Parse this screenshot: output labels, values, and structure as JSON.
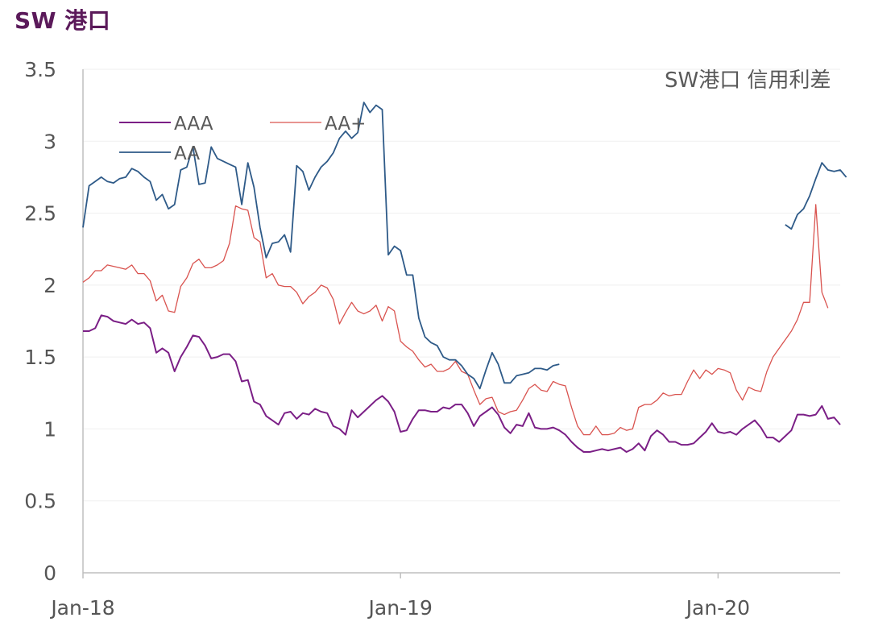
{
  "page_title": "SW 港口",
  "chart_data": {
    "type": "line",
    "title": "SW港口 信用利差",
    "xlabel": "",
    "ylabel": "",
    "ylim": [
      0,
      3.5
    ],
    "yticks": [
      "0",
      "0.5",
      "1",
      "1.5",
      "2",
      "2.5",
      "3",
      "3.5"
    ],
    "xticks": [
      {
        "label": "Jan-18",
        "index": 0
      },
      {
        "label": "Jan-19",
        "index": 52
      },
      {
        "label": "Jan-20",
        "index": 104
      }
    ],
    "n_points": 125,
    "legend": [
      "AAA",
      "AA+",
      "AA"
    ],
    "series": [
      {
        "name": "AAA",
        "color": "#7b1f86",
        "values": [
          1.68,
          1.68,
          1.7,
          1.79,
          1.78,
          1.75,
          1.74,
          1.73,
          1.76,
          1.73,
          1.74,
          1.7,
          1.53,
          1.56,
          1.53,
          1.4,
          1.5,
          1.57,
          1.65,
          1.64,
          1.58,
          1.49,
          1.5,
          1.52,
          1.52,
          1.47,
          1.33,
          1.34,
          1.19,
          1.17,
          1.09,
          1.06,
          1.03,
          1.11,
          1.12,
          1.07,
          1.11,
          1.1,
          1.14,
          1.12,
          1.11,
          1.02,
          1.0,
          0.96,
          1.13,
          1.08,
          1.12,
          1.16,
          1.2,
          1.23,
          1.19,
          1.12,
          0.98,
          0.99,
          1.07,
          1.13,
          1.13,
          1.12,
          1.12,
          1.15,
          1.14,
          1.17,
          1.17,
          1.11,
          1.02,
          1.09,
          1.12,
          1.15,
          1.1,
          1.01,
          0.97,
          1.03,
          1.02,
          1.11,
          1.01,
          1.0,
          1.0,
          1.01,
          0.99,
          0.96,
          0.91,
          0.87,
          0.84,
          0.84,
          0.85,
          0.86,
          0.85,
          0.86,
          0.87,
          0.84,
          0.86,
          0.9,
          0.85,
          0.95,
          0.99,
          0.96,
          0.91,
          0.91,
          0.89,
          0.89,
          0.9,
          0.94,
          0.98,
          1.04,
          0.98,
          0.97,
          0.98,
          0.96,
          1.0,
          1.03,
          1.06,
          1.01,
          0.94,
          0.94,
          0.91,
          0.95,
          0.99,
          1.1,
          1.1,
          1.09,
          1.1,
          1.16,
          1.07,
          1.08,
          1.03
        ]
      },
      {
        "name": "AA+",
        "color": "#d9534f",
        "values": [
          2.02,
          2.05,
          2.1,
          2.1,
          2.14,
          2.13,
          2.12,
          2.11,
          2.14,
          2.08,
          2.08,
          2.03,
          1.89,
          1.93,
          1.82,
          1.81,
          1.99,
          2.05,
          2.15,
          2.18,
          2.12,
          2.12,
          2.14,
          2.17,
          2.29,
          2.55,
          2.53,
          2.52,
          2.33,
          2.3,
          2.05,
          2.08,
          2.0,
          1.99,
          1.99,
          1.95,
          1.87,
          1.92,
          1.95,
          2.0,
          1.98,
          1.9,
          1.73,
          1.81,
          1.88,
          1.82,
          1.8,
          1.82,
          1.86,
          1.75,
          1.85,
          1.82,
          1.61,
          1.57,
          1.54,
          1.48,
          1.43,
          1.45,
          1.4,
          1.4,
          1.42,
          1.47,
          1.4,
          1.38,
          1.27,
          1.17,
          1.21,
          1.22,
          1.12,
          1.1,
          1.12,
          1.13,
          1.2,
          1.28,
          1.31,
          1.27,
          1.26,
          1.33,
          1.31,
          1.3,
          1.15,
          1.02,
          0.96,
          0.96,
          1.02,
          0.96,
          0.96,
          0.97,
          1.01,
          0.99,
          1.0,
          1.15,
          1.17,
          1.17,
          1.2,
          1.25,
          1.23,
          1.24,
          1.24,
          1.33,
          1.41,
          1.35,
          1.41,
          1.38,
          1.42,
          1.41,
          1.39,
          1.27,
          1.2,
          1.29,
          1.27,
          1.26,
          1.4,
          1.5,
          1.56,
          1.62,
          1.68,
          1.76,
          1.88,
          1.88,
          2.56,
          1.95,
          1.84
        ]
      },
      {
        "name": "AA",
        "color": "#2e5a88",
        "values": [
          2.4,
          2.69,
          2.72,
          2.75,
          2.72,
          2.71,
          2.74,
          2.75,
          2.81,
          2.79,
          2.75,
          2.72,
          2.59,
          2.63,
          2.53,
          2.56,
          2.8,
          2.82,
          2.96,
          2.7,
          2.71,
          2.96,
          2.88,
          2.86,
          2.84,
          2.82,
          2.56,
          2.85,
          2.68,
          2.4,
          2.19,
          2.29,
          2.3,
          2.35,
          2.23,
          2.83,
          2.79,
          2.66,
          2.75,
          2.82,
          2.86,
          2.92,
          3.02,
          3.07,
          3.02,
          3.06,
          3.27,
          3.2,
          3.25,
          3.22,
          2.21,
          2.27,
          2.24,
          2.07,
          2.07,
          1.77,
          1.64,
          1.6,
          1.58,
          1.5,
          1.48,
          1.48,
          1.44,
          1.38,
          1.35,
          1.28,
          1.41,
          1.53,
          1.45,
          1.32,
          1.32,
          1.37,
          1.38,
          1.39,
          1.42,
          1.42,
          1.41,
          1.44,
          1.45,
          null,
          null,
          null,
          null,
          null,
          null,
          null,
          null,
          null,
          null,
          null,
          null,
          null,
          null,
          null,
          null,
          null,
          null,
          null,
          null,
          null,
          null,
          null,
          null,
          null,
          null,
          null,
          null,
          null,
          null,
          null,
          null,
          null,
          null,
          null,
          null,
          2.42,
          2.39,
          2.49,
          2.53,
          2.62,
          2.74,
          2.85,
          2.8,
          2.79,
          2.8,
          2.75
        ]
      }
    ]
  }
}
